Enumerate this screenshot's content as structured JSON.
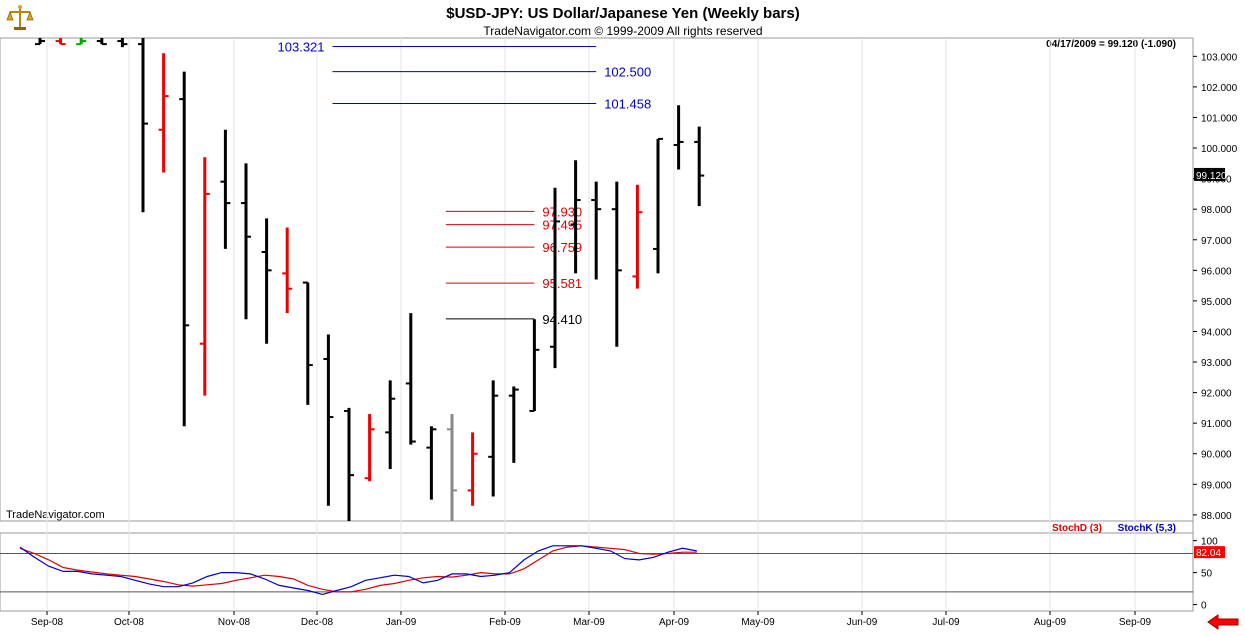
{
  "header": {
    "title": "$USD-JPY:  US Dollar/Japanese Yen  (Weekly bars)",
    "subtitle": "TradeNavigator.com © 1999-2009 All rights reserved",
    "last_value": "04/17/2009 = 99.120 (-1.090)",
    "watermark": "TradeNavigator.com"
  },
  "chart_data": [
    {
      "type": "ohlc",
      "title": "$USD-JPY:  US Dollar/Japanese Yen  (Weekly bars)",
      "ylim": [
        87.8,
        103.6
      ],
      "y_ticks": [
        88,
        89,
        90,
        91,
        92,
        93,
        94,
        95,
        96,
        97,
        98,
        99,
        100,
        101,
        102,
        103
      ],
      "y_tick_labels": [
        "88.000",
        "89.000",
        "90.000",
        "91.000",
        "92.000",
        "93.000",
        "94.000",
        "95.000",
        "96.000",
        "97.000",
        "98.000",
        "99.000",
        "100.000",
        "101.000",
        "102.000",
        "103.000"
      ],
      "x_labels": [
        "Sep-08",
        "Oct-08",
        "Nov-08",
        "Dec-08",
        "Jan-09",
        "Feb-09",
        "Mar-09",
        "Apr-09",
        "May-09",
        "Jun-09",
        "Jul-09",
        "Aug-09",
        "Sep-09"
      ],
      "current_price_label": "99.120",
      "bars": [
        {
          "o": 103.4,
          "h": 103.6,
          "l": 103.4,
          "c": 103.5,
          "color": "black"
        },
        {
          "o": 103.5,
          "h": 103.6,
          "l": 103.4,
          "c": 103.4,
          "color": "red"
        },
        {
          "o": 103.4,
          "h": 103.6,
          "l": 103.4,
          "c": 103.5,
          "color": "green"
        },
        {
          "o": 103.5,
          "h": 103.6,
          "l": 103.4,
          "c": 103.4,
          "color": "black"
        },
        {
          "o": 103.5,
          "h": 103.6,
          "l": 103.3,
          "c": 103.4,
          "color": "black"
        },
        {
          "o": 103.4,
          "h": 103.6,
          "l": 97.9,
          "c": 100.8,
          "color": "black"
        },
        {
          "o": 100.6,
          "h": 103.1,
          "l": 99.2,
          "c": 101.7,
          "color": "red"
        },
        {
          "o": 101.6,
          "h": 102.5,
          "l": 90.9,
          "c": 94.2,
          "color": "black"
        },
        {
          "o": 93.6,
          "h": 99.7,
          "l": 91.9,
          "c": 98.5,
          "color": "red"
        },
        {
          "o": 98.9,
          "h": 100.6,
          "l": 96.7,
          "c": 98.2,
          "color": "black"
        },
        {
          "o": 98.2,
          "h": 99.5,
          "l": 94.4,
          "c": 97.1,
          "color": "black"
        },
        {
          "o": 96.6,
          "h": 97.7,
          "l": 93.6,
          "c": 96.0,
          "color": "black"
        },
        {
          "o": 95.9,
          "h": 97.4,
          "l": 94.6,
          "c": 95.4,
          "color": "red"
        },
        {
          "o": 95.6,
          "h": 95.6,
          "l": 91.6,
          "c": 92.9,
          "color": "black"
        },
        {
          "o": 93.1,
          "h": 93.9,
          "l": 88.3,
          "c": 91.2,
          "color": "black"
        },
        {
          "o": 91.4,
          "h": 91.5,
          "l": 87.8,
          "c": 89.3,
          "color": "black"
        },
        {
          "o": 89.2,
          "h": 91.3,
          "l": 89.1,
          "c": 90.8,
          "color": "red"
        },
        {
          "o": 90.7,
          "h": 92.4,
          "l": 89.5,
          "c": 91.8,
          "color": "black"
        },
        {
          "o": 92.3,
          "h": 94.6,
          "l": 90.3,
          "c": 90.4,
          "color": "black"
        },
        {
          "o": 90.2,
          "h": 90.9,
          "l": 88.5,
          "c": 90.8,
          "color": "black"
        },
        {
          "o": 90.8,
          "h": 91.3,
          "l": 87.8,
          "c": 88.8,
          "color": "gray"
        },
        {
          "o": 88.8,
          "h": 90.7,
          "l": 88.3,
          "c": 90.0,
          "color": "red"
        },
        {
          "o": 89.9,
          "h": 92.4,
          "l": 88.6,
          "c": 91.9,
          "color": "black"
        },
        {
          "o": 91.9,
          "h": 92.2,
          "l": 89.7,
          "c": 92.1,
          "color": "black"
        },
        {
          "o": 91.4,
          "h": 94.4,
          "l": 91.4,
          "c": 93.4,
          "color": "black"
        },
        {
          "o": 93.5,
          "h": 98.7,
          "l": 92.8,
          "c": 97.6,
          "color": "black"
        },
        {
          "o": 97.5,
          "h": 99.6,
          "l": 95.9,
          "c": 98.3,
          "color": "black"
        },
        {
          "o": 98.3,
          "h": 98.9,
          "l": 95.7,
          "c": 98.0,
          "color": "black"
        },
        {
          "o": 98.0,
          "h": 98.9,
          "l": 93.5,
          "c": 96.0,
          "color": "black"
        },
        {
          "o": 95.8,
          "h": 98.8,
          "l": 95.4,
          "c": 97.9,
          "color": "red"
        },
        {
          "o": 96.7,
          "h": 100.3,
          "l": 95.9,
          "c": 100.3,
          "color": "black"
        },
        {
          "o": 100.1,
          "h": 101.4,
          "l": 99.3,
          "c": 100.2,
          "color": "black"
        },
        {
          "o": 100.2,
          "h": 100.7,
          "l": 98.1,
          "c": 99.1,
          "color": "black"
        }
      ],
      "levels": [
        {
          "value": 103.321,
          "label": "103.321",
          "color": "#0000cc",
          "label_side": "left",
          "line_from_bar": 14.2,
          "line_to_bar": 27.0
        },
        {
          "value": 102.5,
          "label": "102.500",
          "color": "#0000cc",
          "label_side": "right",
          "line_from_bar": 14.2,
          "line_to_bar": 27.0
        },
        {
          "value": 101.458,
          "label": "101.458",
          "color": "#0000cc",
          "label_side": "right",
          "line_from_bar": 14.2,
          "line_to_bar": 27.0
        },
        {
          "value": 97.93,
          "label": "97.930",
          "color": "#dd0000",
          "label_side": "right",
          "line_from_bar": 19.7,
          "line_to_bar": 24.0
        },
        {
          "value": 97.495,
          "label": "97.495",
          "color": "#dd0000",
          "label_side": "right",
          "line_from_bar": 19.7,
          "line_to_bar": 24.0
        },
        {
          "value": 96.759,
          "label": "96.759",
          "color": "#dd0000",
          "label_side": "right",
          "line_from_bar": 19.7,
          "line_to_bar": 24.0
        },
        {
          "value": 95.581,
          "label": "95.581",
          "color": "#dd0000",
          "label_side": "right",
          "line_from_bar": 19.7,
          "line_to_bar": 24.0
        },
        {
          "value": 94.41,
          "label": "94.410",
          "color": "#000000",
          "label_side": "right",
          "line_from_bar": 19.7,
          "line_to_bar": 24.0
        }
      ]
    },
    {
      "type": "line",
      "title": "",
      "ylim": [
        -10,
        112
      ],
      "y_ticks": [
        0,
        50,
        100
      ],
      "y_tick_labels": [
        "0",
        "50",
        "100"
      ],
      "reference_lines": [
        20,
        80
      ],
      "current_value_label": "82.04",
      "series": [
        {
          "name": "StochD (3)",
          "color": "#dd0000",
          "values": [
            88,
            80,
            70,
            58,
            54,
            51,
            48,
            46,
            44,
            40,
            36,
            31,
            29,
            31,
            33,
            38,
            42,
            46,
            44,
            40,
            30,
            24,
            20,
            20,
            24,
            30,
            33,
            38,
            42,
            44,
            43,
            46,
            50,
            48,
            48,
            56,
            70,
            84,
            90,
            92,
            90,
            88,
            86,
            80,
            79,
            80,
            82,
            82
          ]
        },
        {
          "name": "StochK (5,3)",
          "color": "#0000cc",
          "values": [
            90,
            74,
            60,
            52,
            52,
            48,
            46,
            44,
            38,
            32,
            28,
            28,
            34,
            44,
            50,
            50,
            48,
            40,
            30,
            26,
            22,
            16,
            22,
            28,
            38,
            42,
            46,
            44,
            34,
            38,
            48,
            48,
            44,
            46,
            50,
            70,
            84,
            92,
            92,
            92,
            88,
            84,
            72,
            70,
            74,
            82,
            88,
            84
          ]
        }
      ]
    }
  ],
  "ui": {
    "toolbar_icon": "scales-icon",
    "scroll_arrow_icon": "arrow-left-icon",
    "colors": {
      "accent_red": "#dd0000",
      "accent_blue": "#0000cc",
      "value_tag": "#ff0000"
    }
  }
}
